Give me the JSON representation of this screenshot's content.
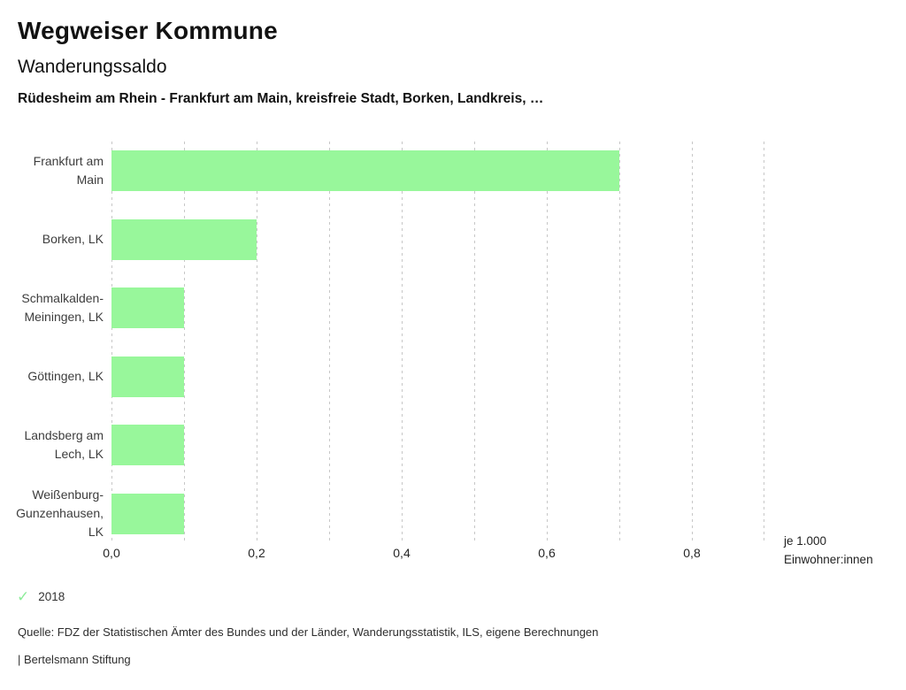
{
  "header": {
    "title": "Wegweiser Kommune",
    "subtitle": "Wanderungssaldo",
    "context_line": "Rüdesheim am Rhein - Frankfurt am Main, kreisfreie Stadt, Borken, Landkreis, …"
  },
  "chart_data": {
    "type": "bar",
    "orientation": "horizontal",
    "title": "Wanderungssaldo",
    "categories": [
      "Frankfurt am Main",
      "Borken, LK",
      "Schmalkalden-Meiningen, LK",
      "Göttingen, LK",
      "Landsberg am Lech, LK",
      "Weißenburg-Gunzenhausen, LK"
    ],
    "category_label_lines": [
      [
        "Frankfurt am",
        "Main"
      ],
      [
        "Borken, LK"
      ],
      [
        "Schmalkalden-",
        "Meiningen, LK"
      ],
      [
        "Göttingen, LK"
      ],
      [
        "Landsberg am",
        "Lech, LK"
      ],
      [
        "Weißenburg-",
        "Gunzenhausen,",
        "LK"
      ]
    ],
    "series": [
      {
        "name": "2018",
        "values": [
          0.7,
          0.2,
          0.1,
          0.1,
          0.1,
          0.1
        ]
      }
    ],
    "xlim": [
      0,
      0.9
    ],
    "gridline_step": 0.1,
    "xtick_values": [
      0,
      0.2,
      0.4,
      0.6,
      0.8
    ],
    "xtick_labels": [
      "0,0",
      "0,2",
      "0,4",
      "0,6",
      "0,8"
    ],
    "xlabel": "je 1.000 Einwohner:innen",
    "unit_label_lines": [
      "je 1.000",
      "Einwohner:innen"
    ],
    "grid": "vertical-dashed",
    "legend_position": "bottom-left",
    "bar_color": "#98f79b",
    "gridline_color": "#c7c7c7"
  },
  "legend": {
    "year": "2018",
    "check_icon": "checkmark",
    "check_color": "#8dec9a"
  },
  "footer": {
    "source": "Quelle: FDZ der Statistischen Ämter des Bundes und der Länder, Wanderungsstatistik, ILS, eigene Berechnungen",
    "branding": "| Bertelsmann Stiftung"
  }
}
